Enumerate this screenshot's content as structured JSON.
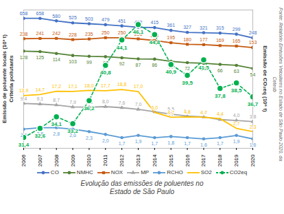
{
  "chart_data": {
    "type": "line",
    "caption": "Evolução das emissões de poluentes no Estado de São Paulo",
    "ylabel": "Emissão de poluente locais (10³ t)",
    "ysublabel": "Criteria pollutants",
    "y2label": "Emissão de CO₂eq (10⁶ t)",
    "source": "Fonte: Relatório Emissões Veiculares no Estado de São Paulo 2020, da Cetesb",
    "x": [
      2006,
      2007,
      2008,
      2009,
      2010,
      2011,
      2012,
      2013,
      2014,
      2015,
      2016,
      2017,
      2018,
      2019,
      2020
    ],
    "xlim": [
      2006,
      2020
    ],
    "xticks": [
      2006,
      2007,
      2008,
      2009,
      2010,
      2011,
      2012,
      2013,
      2014,
      2015,
      2016,
      2017,
      2018,
      2019,
      2020
    ],
    "log": "y",
    "ylim": [
      1,
      1000
    ],
    "yticks": [],
    "y2lim": [
      30,
      48
    ],
    "y2ticks": [],
    "tick_labels": "x",
    "data_labels": true,
    "legend": "bottom",
    "series": [
      {
        "name": "CO",
        "color": "#4472c4",
        "marker": "circle",
        "values": [
          658,
          658,
          580,
          525,
          503,
          479,
          451,
          422,
          415,
          361,
          327,
          321,
          315,
          299,
          248
        ]
      },
      {
        "name": "NMHC",
        "color": "#548235",
        "marker": "circle",
        "values": [
          128,
          125,
          114,
          103,
          99,
          97,
          92,
          87,
          86,
          77,
          72,
          70,
          66,
          63,
          54
        ]
      },
      {
        "name": "NOX",
        "color": "#c55a11",
        "marker": "square",
        "values": [
          238,
          241,
          242,
          228,
          235,
          250,
          250,
          236,
          218,
          195,
          180,
          177,
          169,
          165,
          153
        ]
      },
      {
        "name": "MP",
        "color": "#a5a5a5",
        "marker": "triangle",
        "values": [
          9.4,
          9.1,
          8.7,
          7.9,
          7.8,
          8.0,
          7.6,
          7.0,
          6.2,
          5.5,
          5.0,
          4.8,
          4.2,
          4.0,
          3.8
        ],
        "value_labels": [
          "9,4",
          "9,1",
          "8,7",
          "7,9",
          "7,8",
          "8,0",
          "7,6",
          "7,0",
          "6,2",
          "5,5",
          "5,0",
          "4,8",
          "4,2",
          "4,0",
          "3,8"
        ]
      },
      {
        "name": "RCHO",
        "color": "#5b9bd5",
        "marker": "circle",
        "values": [
          2.6,
          2.8,
          2.8,
          2.6,
          2.3,
          2.0,
          1.7,
          1.9,
          1.7,
          1.8,
          1.7,
          1.6,
          1.7,
          1.9,
          1.6
        ],
        "value_labels": [
          "2,6",
          "2,8",
          "2,8",
          "2,6",
          "2,3",
          "2,0",
          "1,7",
          "1,9",
          "1,7",
          "1,8",
          "1,7",
          "1,6",
          "1,7",
          "1,9",
          "1,6"
        ]
      },
      {
        "name": "SO2",
        "color": "#ffc000",
        "values": [
          13.9,
          14.7,
          17.2,
          17.1,
          18.0,
          17.7,
          18.8,
          17.0,
          6.0,
          4.7,
          4.8,
          4.7,
          4.4,
          2.7,
          2.3
        ],
        "value_labels": [
          "13,9",
          "14,7",
          "17,2",
          "17,1",
          "18,0",
          "17,7",
          "18,8",
          "17,0",
          "6,0",
          "4,7",
          "4,8",
          "4,7",
          "4,4",
          "2,7",
          "2,3"
        ]
      },
      {
        "name": "CO2eq",
        "color": "#00b050",
        "marker": "circle",
        "line_style": "dashed",
        "axis": "y2",
        "values": [
          31.4,
          32.6,
          34.1,
          33.2,
          36.2,
          40.8,
          44.1,
          46.1,
          44.8,
          40.9,
          39.5,
          41.5,
          37.8,
          38.5,
          36.7
        ],
        "value_labels": [
          "31,4",
          "32,6",
          "34,1",
          "33,2",
          "36,2",
          "40,8",
          "44,1",
          "46,1",
          "44,8",
          "40,9",
          "39,5",
          "41,5",
          "37,8",
          "38,5",
          "36,7"
        ]
      }
    ]
  }
}
